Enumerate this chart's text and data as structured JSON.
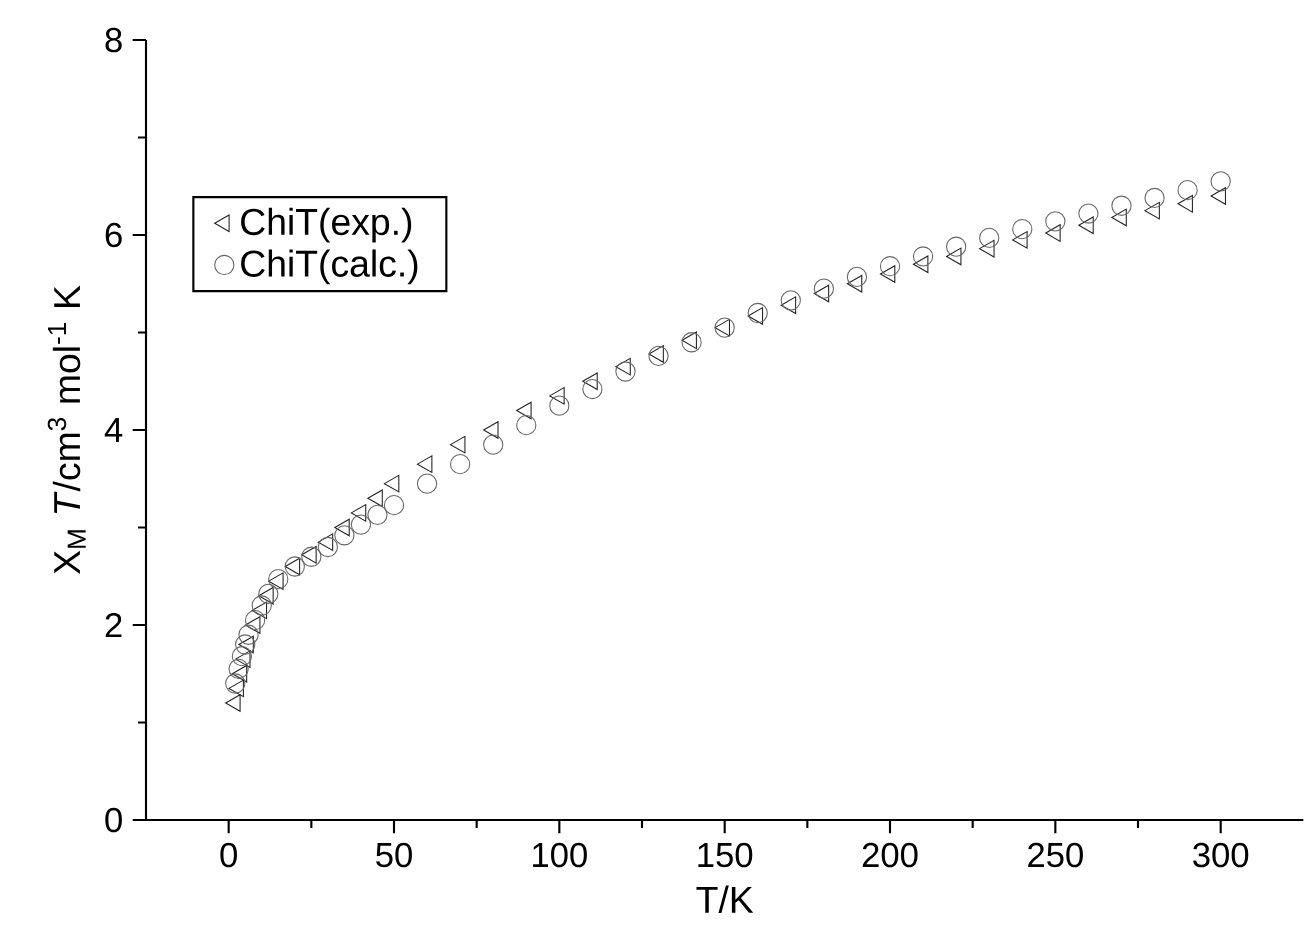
{
  "chart_data": {
    "type": "scatter",
    "xlabel": "T/K",
    "ylabel": "X$_{M}$ *T*/cm$^{3}$ mol$^{-1}$ K",
    "xlim": [
      -25,
      325
    ],
    "xticks": [
      0,
      50,
      100,
      150,
      200,
      250,
      300
    ],
    "ylim": [
      0,
      8
    ],
    "yticks": [
      0,
      2,
      4,
      6,
      8
    ],
    "grid": false,
    "legend": "top left",
    "x": [
      2,
      3,
      4,
      5,
      6,
      8,
      10,
      12,
      15,
      20,
      25,
      30,
      35,
      40,
      45,
      50,
      60,
      70,
      80,
      90,
      100,
      110,
      120,
      130,
      140,
      150,
      160,
      170,
      180,
      190,
      200,
      210,
      220,
      230,
      240,
      250,
      260,
      270,
      280,
      290,
      300
    ],
    "series": [
      {
        "name": "ChiT(exp.)",
        "color": "#222222",
        "marker": "triangle",
        "values": [
          1.2,
          1.35,
          1.5,
          1.65,
          1.8,
          2.0,
          2.15,
          2.3,
          2.45,
          2.6,
          2.72,
          2.85,
          3.0,
          3.15,
          3.3,
          3.45,
          3.65,
          3.85,
          4.0,
          4.2,
          4.35,
          4.5,
          4.65,
          4.78,
          4.92,
          5.05,
          5.17,
          5.28,
          5.4,
          5.5,
          5.6,
          5.7,
          5.78,
          5.86,
          5.95,
          6.02,
          6.1,
          6.18,
          6.25,
          6.32,
          6.4
        ]
      },
      {
        "name": "ChiT(calc.)",
        "color": "#666666",
        "marker": "circle",
        "values": [
          1.4,
          1.55,
          1.68,
          1.8,
          1.9,
          2.05,
          2.2,
          2.32,
          2.47,
          2.6,
          2.7,
          2.8,
          2.92,
          3.03,
          3.13,
          3.23,
          3.45,
          3.65,
          3.85,
          4.05,
          4.25,
          4.42,
          4.6,
          4.76,
          4.9,
          5.05,
          5.2,
          5.33,
          5.45,
          5.57,
          5.68,
          5.78,
          5.88,
          5.97,
          6.06,
          6.14,
          6.22,
          6.3,
          6.38,
          6.46,
          6.55
        ]
      }
    ]
  }
}
